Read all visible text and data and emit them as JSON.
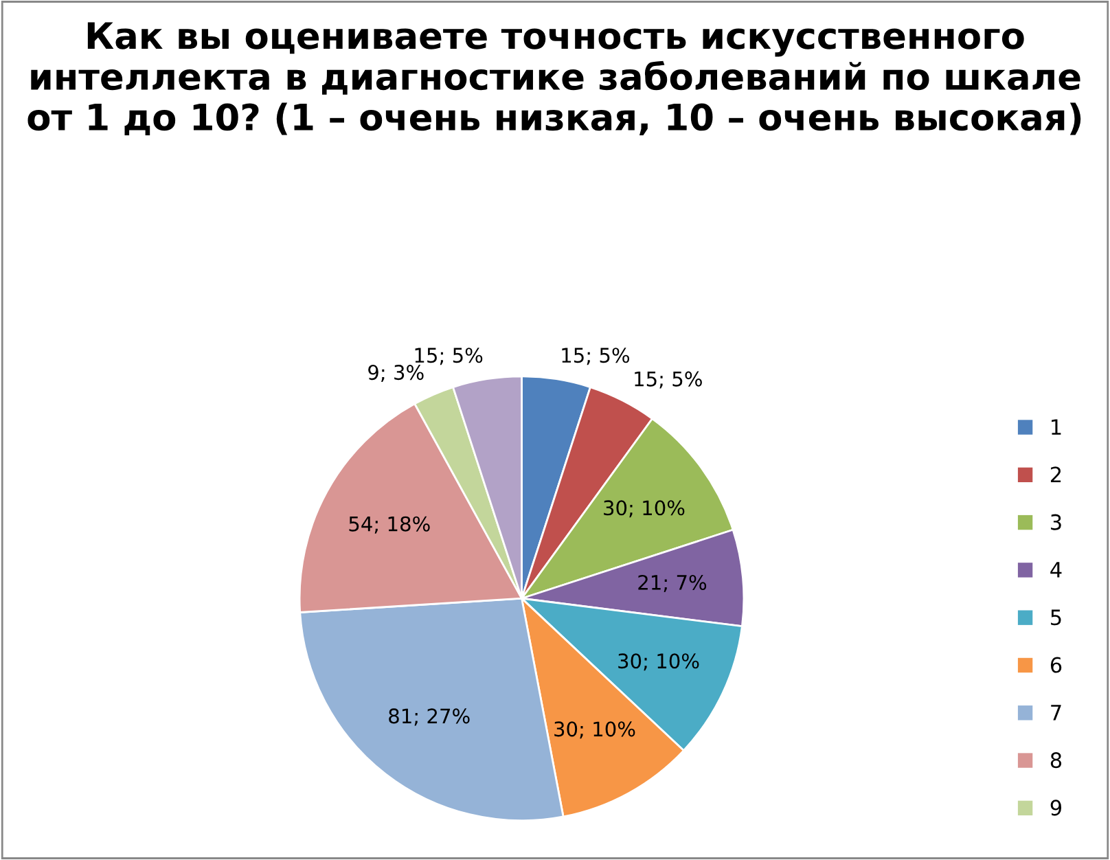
{
  "chart_data": {
    "type": "pie",
    "title": "Как вы оцениваете точность искусственного интеллекта в диагностике заболеваний по шкале от 1 до 10? (1 – очень низкая, 10 – очень высокая)",
    "categories": [
      "1",
      "2",
      "3",
      "4",
      "5",
      "6",
      "7",
      "8",
      "9",
      null
    ],
    "values": [
      15,
      15,
      30,
      21,
      30,
      30,
      81,
      54,
      9,
      15
    ],
    "value_labels": [
      "15; 5%",
      "15; 5%",
      "30; 10%",
      "21; 7%",
      "30; 10%",
      "30; 10%",
      "81; 27%",
      "54; 18%",
      "9; 3%",
      "15; 5%"
    ],
    "colors": [
      "#4f81bd",
      "#c0504d",
      "#9bbb59",
      "#8064a2",
      "#4bacc6",
      "#f79646",
      "#95b3d7",
      "#d99694",
      "#c3d69b",
      "#b2a2c7"
    ],
    "legend": "right"
  }
}
